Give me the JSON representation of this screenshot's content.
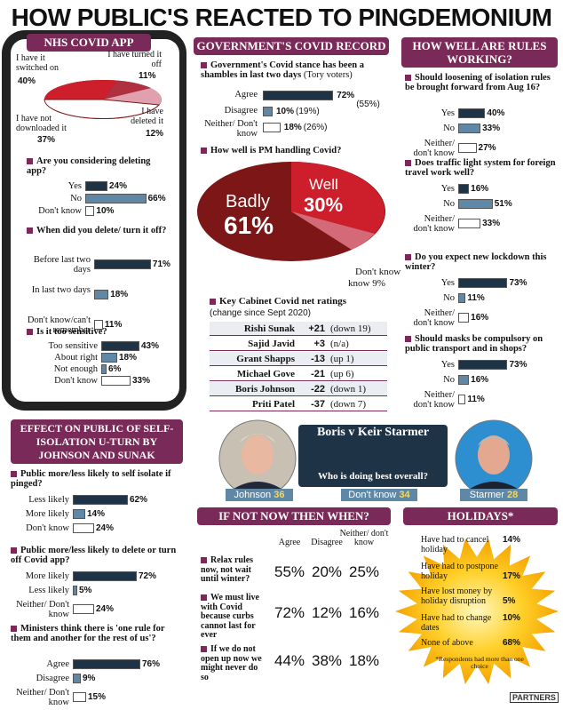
{
  "title": "HOW PUBLIC'S REACTED TO PINGDEMONIUM",
  "colors": {
    "header": "#7a2a58",
    "dark": "#1f3346",
    "mid": "#5f88a6",
    "red": "#cc1f2b",
    "darkred": "#7d1616",
    "pink": "#d46a78"
  },
  "nhs": {
    "header": "NHS COVID APP",
    "pie": {
      "switched_on": "I have it switched on",
      "switched_on_pct": "40%",
      "turned_off": "I have turned it off",
      "turned_off_pct": "11%",
      "deleted": "I have deleted it",
      "deleted_pct": "12%",
      "not_downloaded": "I have not downloaded it",
      "not_downloaded_pct": "37%"
    },
    "q1": {
      "q": "Are you considering deleting app?",
      "rows": [
        {
          "l": "Yes",
          "v": 24,
          "t": "24%"
        },
        {
          "l": "No",
          "v": 66,
          "t": "66%"
        },
        {
          "l": "Don't know",
          "v": 10,
          "t": "10%"
        }
      ]
    },
    "q2": {
      "q": "When did you delete/ turn it off?",
      "rows": [
        {
          "l": "Before last two days",
          "v": 71,
          "t": "71%"
        },
        {
          "l": "In last two days",
          "v": 18,
          "t": "18%"
        },
        {
          "l": "Don't know/can't remember",
          "v": 11,
          "t": "11%"
        }
      ]
    },
    "q3": {
      "q": "Is it too sensitive?",
      "rows": [
        {
          "l": "Too sensitive",
          "v": 43,
          "t": "43%"
        },
        {
          "l": "About right",
          "v": 18,
          "t": "18%"
        },
        {
          "l": "Not enough",
          "v": 6,
          "t": "6%"
        },
        {
          "l": "Don't know",
          "v": 33,
          "t": "33%"
        }
      ]
    }
  },
  "gov": {
    "header": "GOVERNMENT'S COVID RECORD",
    "q": "Government's Covid stance has been a shambles in last two days",
    "qsub": "(Tory voters)",
    "rows": [
      {
        "l": "Agree",
        "v": 72,
        "t": "72%",
        "s": "(55%)"
      },
      {
        "l": "Disagree",
        "v": 10,
        "t": "10%",
        "s": "(19%)"
      },
      {
        "l": "Neither/ Don't know",
        "v": 18,
        "t": "18%",
        "s": "(26%)"
      }
    ],
    "pm_q": "How well is PM handling Covid?",
    "pm": {
      "badly": "Badly",
      "badly_pct": "61%",
      "well": "Well",
      "well_pct": "30%",
      "dk": "Don't know",
      "dk_pct": "9%"
    }
  },
  "cabinet": {
    "title": "Key Cabinet Covid net ratings",
    "sub": "(change since Sept 2020)",
    "rows": [
      {
        "n": "Rishi Sunak",
        "s": "+21",
        "c": "(down 19)"
      },
      {
        "n": "Sajid Javid",
        "s": "+3",
        "c": "(n/a)"
      },
      {
        "n": "Grant Shapps",
        "s": "-13",
        "c": "(up 1)"
      },
      {
        "n": "Michael Gove",
        "s": "-21",
        "c": "(up 6)"
      },
      {
        "n": "Boris Johnson",
        "s": "-22",
        "c": "(down 1)"
      },
      {
        "n": "Priti Patel",
        "s": "-37",
        "c": "(down 7)"
      }
    ]
  },
  "rules": {
    "header": "HOW WELL ARE RULES WORKING?",
    "qs": [
      {
        "q": "Should loosening of isolation rules be brought forward from Aug 16?",
        "rows": [
          {
            "l": "Yes",
            "v": 40,
            "t": "40%"
          },
          {
            "l": "No",
            "v": 33,
            "t": "33%"
          },
          {
            "l": "Neither/ don't know",
            "v": 27,
            "t": "27%"
          }
        ]
      },
      {
        "q": "Does traffic light system for foreign travel work well?",
        "rows": [
          {
            "l": "Yes",
            "v": 16,
            "t": "16%"
          },
          {
            "l": "No",
            "v": 51,
            "t": "51%"
          },
          {
            "l": "Neither/ don't know",
            "v": 33,
            "t": "33%"
          }
        ]
      },
      {
        "q": "Do you expect new lockdown this winter?",
        "rows": [
          {
            "l": "Yes",
            "v": 73,
            "t": "73%"
          },
          {
            "l": "No",
            "v": 11,
            "t": "11%"
          },
          {
            "l": "Neither/ don't know",
            "v": 16,
            "t": "16%"
          }
        ]
      },
      {
        "q": "Should masks be compulsory on public transport and in shops?",
        "rows": [
          {
            "l": "Yes",
            "v": 73,
            "t": "73%"
          },
          {
            "l": "No",
            "v": 16,
            "t": "16%"
          },
          {
            "l": "Neither/ don't know",
            "v": 11,
            "t": "11%"
          }
        ]
      }
    ]
  },
  "effect": {
    "header": "EFFECT ON PUBLIC OF SELF-ISOLATION U-TURN BY JOHNSON AND SUNAK",
    "qs": [
      {
        "q": "Public more/less likely to self isolate if pinged?",
        "rows": [
          {
            "l": "Less likely",
            "v": 62,
            "t": "62%"
          },
          {
            "l": "More likely",
            "v": 14,
            "t": "14%"
          },
          {
            "l": "Don't know",
            "v": 24,
            "t": "24%"
          }
        ]
      },
      {
        "q": "Public more/less likely to delete or turn off Covid app?",
        "rows": [
          {
            "l": "More likely",
            "v": 72,
            "t": "72%"
          },
          {
            "l": "Less likely",
            "v": 5,
            "t": "5%"
          },
          {
            "l": "Neither/ Don't know",
            "v": 24,
            "t": "24%"
          }
        ]
      },
      {
        "q": "Ministers think there is 'one rule for them and another for the rest of us'?",
        "rows": [
          {
            "l": "Agree",
            "v": 76,
            "t": "76%"
          },
          {
            "l": "Disagree",
            "v": 9,
            "t": "9%"
          },
          {
            "l": "Neither/ Don't know",
            "v": 15,
            "t": "15%"
          }
        ]
      }
    ]
  },
  "vs": {
    "title": "Boris v Keir Starmer",
    "q": "Who is doing best overall?",
    "johnson": "Johnson",
    "johnson_v": "36",
    "dk": "Don't know",
    "dk_v": "34",
    "starmer": "Starmer",
    "starmer_v": "28"
  },
  "when": {
    "header": "IF NOT NOW THEN WHEN?",
    "cols": [
      "Agree",
      "Disagree",
      "Neither/ don't know"
    ],
    "rows": [
      {
        "s": "Relax rules now, not wait until winter?",
        "a": "55%",
        "d": "20%",
        "n": "25%"
      },
      {
        "s": "We must live with Covid because curbs cannot last for ever",
        "a": "72%",
        "d": "12%",
        "n": "16%"
      },
      {
        "s": "If we do not open up now we might never do so",
        "a": "44%",
        "d": "38%",
        "n": "18%"
      }
    ]
  },
  "holidays": {
    "header": "HOLIDAYS*",
    "rows": [
      {
        "l": "Have had to cancel holiday",
        "v": "14%"
      },
      {
        "l": "Have had to postpone holiday",
        "v": "17%"
      },
      {
        "l": "Have lost money by holiday disruption",
        "v": "5%"
      },
      {
        "l": "Have had to change dates",
        "v": "10%"
      },
      {
        "l": "None of above",
        "v": "68%"
      }
    ],
    "note": "*Respondents had more than one choice"
  },
  "logo": "PARTNERS"
}
